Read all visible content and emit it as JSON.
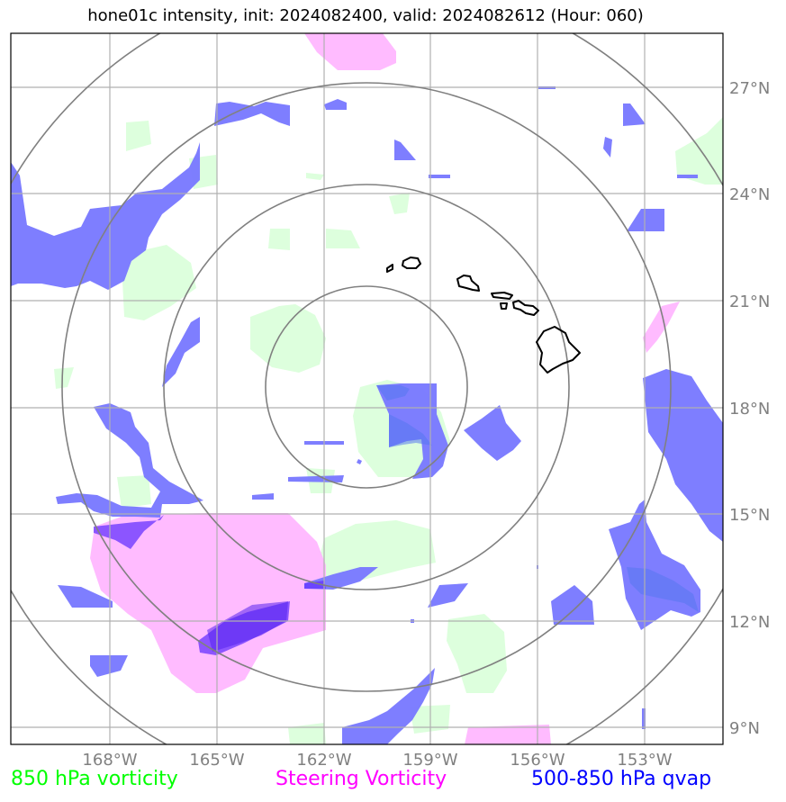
{
  "title": "hone01c intensity, init: 2024082400, valid: 2024082612 (Hour: 060)",
  "lat_ticks": [
    "27°N",
    "24°N",
    "21°N",
    "18°N",
    "15°N",
    "12°N",
    "9°N"
  ],
  "lon_ticks": [
    "168°W",
    "165°W",
    "162°W",
    "159°W",
    "156°W",
    "153°W"
  ],
  "legend": [
    {
      "label": "850 hPa vorticity",
      "color": "#00ff00"
    },
    {
      "label": "Steering Vorticity",
      "color": "#ff00ff"
    },
    {
      "label": "500-850 hPa qvap",
      "color": "#0000ff"
    }
  ],
  "colors": {
    "vorticity_850": "#ddffdd",
    "steering_vorticity": "#ffbbff",
    "qvap": "#7777ff",
    "qvap_dark": "#6633ff",
    "grid": "#b0b0b0",
    "range_rings": "#808080",
    "coastline": "#000000"
  },
  "map": {
    "lon_range": [
      -171,
      -151
    ],
    "lat_range": [
      8.5,
      28.5
    ],
    "center": {
      "lat": 18.5,
      "lon": -160.8
    },
    "range_rings_count": 4,
    "islands": [
      "Kauai",
      "Oahu",
      "Molokai",
      "Maui",
      "Hawaii"
    ]
  }
}
